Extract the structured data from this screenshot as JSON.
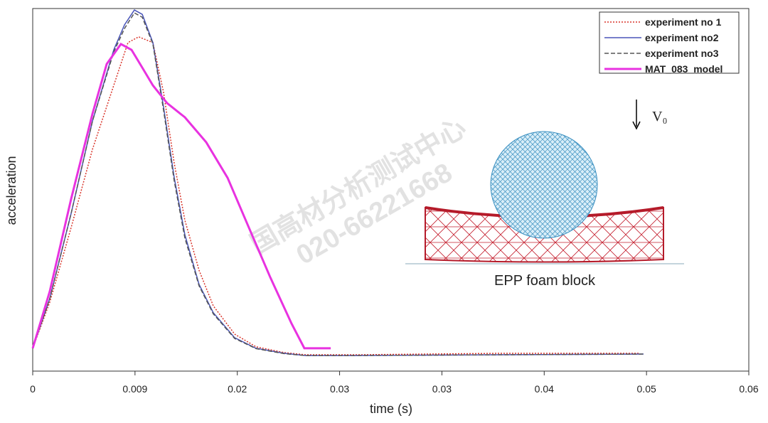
{
  "chart_data": {
    "type": "line",
    "x_label": "time (s)",
    "y_label": "acceleration",
    "xlim": [
      0,
      0.06
    ],
    "ylim": [
      0,
      100
    ],
    "xticks": [
      0,
      {
        "value": 0.008571,
        "label": "0.009"
      },
      {
        "value": 0.017143,
        "label": "0.02"
      },
      {
        "value": 0.025714,
        "label": "0.03"
      },
      {
        "value": 0.034286,
        "label": "0.03"
      },
      {
        "value": 0.042857,
        "label": "0.04"
      },
      {
        "value": 0.051429,
        "label": "0.05"
      },
      0.06
    ],
    "legend": "top-right",
    "series": [
      {
        "name": "experiment no 1",
        "color": "#d9352b",
        "style": "dotted",
        "x": [
          0,
          0.00143,
          0.00322,
          0.00501,
          0.00679,
          0.00798,
          0.00888,
          0.01007,
          0.01096,
          0.01186,
          0.01275,
          0.01394,
          0.01513,
          0.01692,
          0.01871,
          0.02109,
          0.02288,
          0.02705,
          0.03897,
          0.05088
        ],
        "values": [
          6.3,
          19,
          39.6,
          61.2,
          78.8,
          90.6,
          92.2,
          90.6,
          76.9,
          57.3,
          41.6,
          27.8,
          18,
          10.2,
          6.7,
          5.1,
          4.5,
          4.5,
          4.9,
          4.9
        ]
      },
      {
        "name": "experiment no2",
        "color": "#4a55b8",
        "style": "solid",
        "x": [
          0,
          0.00143,
          0.00322,
          0.00501,
          0.00679,
          0.00769,
          0.00852,
          0.00918,
          0.01007,
          0.01096,
          0.01186,
          0.01275,
          0.01394,
          0.01513,
          0.01692,
          0.01871,
          0.02109,
          0.02288,
          0.02705,
          0.03897,
          0.05118
        ],
        "values": [
          6.3,
          20,
          43.5,
          69,
          88.6,
          95.5,
          99.6,
          98.4,
          90.6,
          72.9,
          53.3,
          37.6,
          23.9,
          16.1,
          9.2,
          6.3,
          4.9,
          4.3,
          4.3,
          4.5,
          4.7
        ]
      },
      {
        "name": "experiment no3",
        "color": "#555555",
        "style": "dashed",
        "x": [
          0,
          0.00143,
          0.00322,
          0.00501,
          0.00679,
          0.00769,
          0.00852,
          0.00918,
          0.01007,
          0.01096,
          0.01186,
          0.01275,
          0.01394,
          0.01513,
          0.01692,
          0.01871,
          0.02109,
          0.02288,
          0.02705,
          0.03897,
          0.05118
        ],
        "values": [
          6.3,
          20,
          43.5,
          69,
          88,
          94.5,
          98.8,
          97.6,
          90.2,
          72,
          52.4,
          36.7,
          23.5,
          15.8,
          9,
          6.2,
          4.8,
          4.3,
          4.3,
          4.5,
          4.7
        ]
      },
      {
        "name": "MAT_083  model",
        "color": "#e832e0",
        "style": "solid",
        "x": [
          0,
          0.00143,
          0.00322,
          0.00501,
          0.0062,
          0.00739,
          0.00828,
          0.00918,
          0.01007,
          0.01126,
          0.01275,
          0.01454,
          0.01633,
          0.01811,
          0.0199,
          0.02169,
          0.02276,
          0.02497
        ],
        "values": [
          6.3,
          22,
          47.5,
          71,
          84.7,
          90.2,
          88.6,
          83.7,
          78.8,
          73.9,
          70,
          63.1,
          53.3,
          39.6,
          25.9,
          13.1,
          6.3,
          6.3
        ]
      }
    ],
    "annotations": [
      "EPP foam block",
      "V₀",
      "国高材分析测试中心",
      "020-66221668"
    ]
  }
}
